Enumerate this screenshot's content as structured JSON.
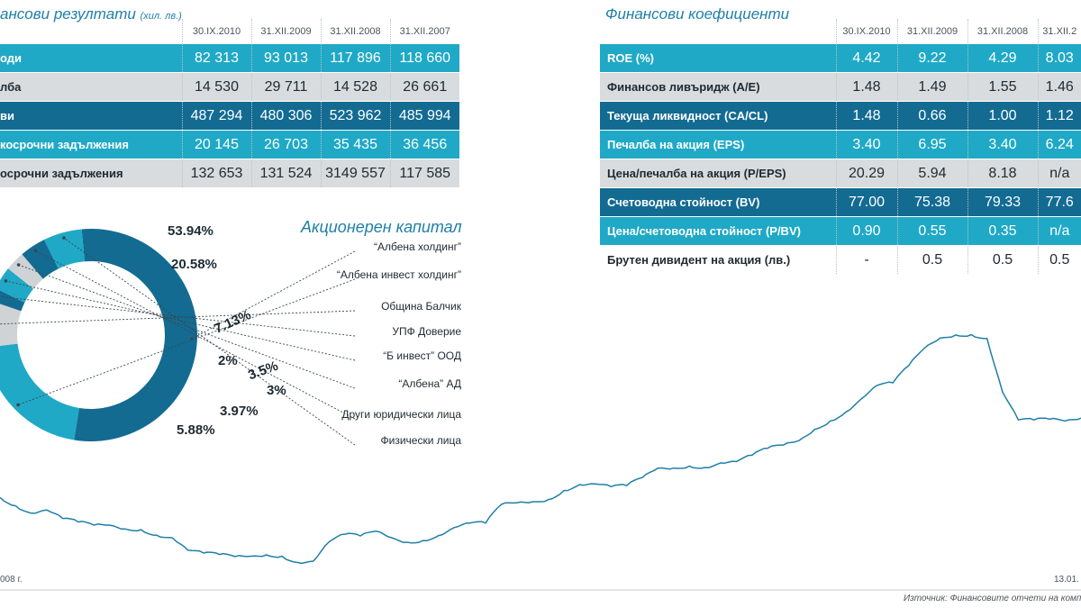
{
  "left_panel": {
    "title": "ансови резултати",
    "unit": "(хил. лв.)",
    "columns": [
      "30.IX.2010",
      "31.XII.2009",
      "31.XII.2008",
      "31.XII.2007"
    ],
    "rows": [
      {
        "label": "оди",
        "values": [
          "82 313",
          "93 013",
          "117 896",
          "118 660"
        ],
        "style": "cyan"
      },
      {
        "label": "лба",
        "values": [
          "14 530",
          "29 711",
          "14 528",
          "26 661"
        ],
        "style": "grey"
      },
      {
        "label": "ви",
        "values": [
          "487 294",
          "480 306",
          "523 962",
          "485 994"
        ],
        "style": "dark"
      },
      {
        "label": "косрочни задължения",
        "values": [
          "20 145",
          "26 703",
          "35 435",
          "36 456"
        ],
        "style": "cyan"
      },
      {
        "label": "осрочни задължения",
        "values": [
          "132 653",
          "131 524",
          "3149 557",
          "117 585"
        ],
        "style": "grey"
      }
    ]
  },
  "right_panel": {
    "title": "Финансови коефициенти",
    "columns": [
      "30.IX.2010",
      "31.XII.2009",
      "31.XII.2008",
      "31.XII.2"
    ],
    "rows": [
      {
        "label": "ROE (%)",
        "values": [
          "4.42",
          "9.22",
          "4.29",
          "8.03"
        ],
        "style": "cyan"
      },
      {
        "label": "Финансов ливъридж (A/E)",
        "values": [
          "1.48",
          "1.49",
          "1.55",
          "1.46"
        ],
        "style": "grey"
      },
      {
        "label": "Текуща ликвидност (CA/CL)",
        "values": [
          "1.48",
          "0.66",
          "1.00",
          "1.12"
        ],
        "style": "dark"
      },
      {
        "label": "Печалба на акция (EPS)",
        "values": [
          "3.40",
          "6.95",
          "3.40",
          "6.24"
        ],
        "style": "cyan"
      },
      {
        "label": "Цена/печалба на акция (P/EPS)",
        "values": [
          "20.29",
          "5.94",
          "8.18",
          "n/a"
        ],
        "style": "grey"
      },
      {
        "label": "Счетоводна стойност (BV)",
        "values": [
          "77.00",
          "75.38",
          "79.33",
          "77.6"
        ],
        "style": "dark"
      },
      {
        "label": "Цена/счетоводна стойност (P/BV)",
        "values": [
          "0.90",
          "0.55",
          "0.35",
          "n/a"
        ],
        "style": "cyan"
      },
      {
        "label": "Брутен дивидент на акция (лв.)",
        "values": [
          "-",
          "0.5",
          "0.5",
          "0.5"
        ],
        "style": "white"
      }
    ]
  },
  "chart_data": [
    {
      "type": "pie",
      "title": "Акционерен капитал",
      "slices": [
        {
          "label": "“Албена холдинг”",
          "value": 53.94,
          "value_label": "53.94%",
          "color": "#136b92"
        },
        {
          "label": "“Албена инвест холдинг”",
          "value": 20.58,
          "value_label": "20.58%",
          "color": "#1fa9c6"
        },
        {
          "label": "Община Балчик",
          "value": 7.13,
          "value_label": "7.13%",
          "color": "#d0d3d6"
        },
        {
          "label": "УПФ Доверие",
          "value": 2,
          "value_label": "2%",
          "color": "#136b92"
        },
        {
          "label": "“Б инвест” ООД",
          "value": 3.5,
          "value_label": "3.5%",
          "color": "#1fa9c6"
        },
        {
          "label": "“Албена” АД",
          "value": 3,
          "value_label": "3%",
          "color": "#d0d3d6"
        },
        {
          "label": "Други юридически лица",
          "value": 3.97,
          "value_label": "3.97%",
          "color": "#136b92"
        },
        {
          "label": "Физически лица",
          "value": 5.88,
          "value_label": "5.88%",
          "color": "#1fa9c6"
        }
      ]
    },
    {
      "type": "line",
      "x_start_label": "008 г.",
      "x_end_label": "13.01.",
      "line_color": "#1f7fa8",
      "series": [
        {
          "values": [
            54.5,
            52.1,
            50.0,
            50.9,
            48.5,
            47.5,
            46.6,
            46.6,
            45.5,
            45.3,
            43.7,
            43.0,
            39.4,
            38.6,
            38.2,
            37.6,
            37.7,
            38.1,
            37.7,
            35.9,
            36.3,
            41.8,
            44.0,
            43.5,
            44.9,
            43.0,
            41.7,
            42.2,
            43.6,
            45.9,
            47.2,
            47.2,
            52.5,
            53.0,
            53.3,
            53.9,
            56.5,
            58.2,
            58.4,
            57.6,
            57.9,
            60.2,
            62.9,
            62.9,
            63.5,
            63.1,
            64.4,
            64.8,
            66.6,
            68.6,
            69.5,
            70.8,
            74.0,
            76.4,
            79.0,
            82.8,
            86.6,
            87.3,
            92.2,
            97.2,
            100.1,
            101.0,
            101.1,
            100.0,
            84.6,
            76.7,
            76.7,
            76.9,
            76.4,
            77.2
          ]
        }
      ]
    }
  ],
  "source": "Източник: Финансовите отчети на комп"
}
